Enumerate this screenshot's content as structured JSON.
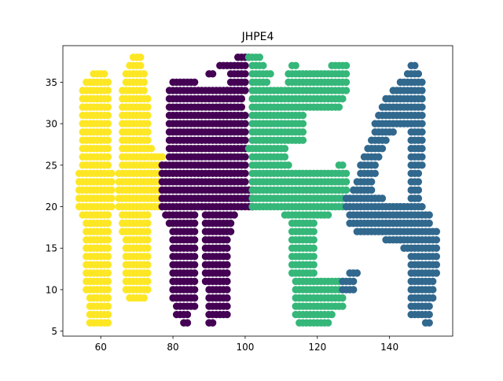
{
  "chart_data": {
    "type": "scatter",
    "title": "JHPE4",
    "xlabel": "",
    "ylabel": "",
    "xlim": [
      49.5,
      157.5
    ],
    "ylim": [
      4.4,
      39.4
    ],
    "x_ticks": [
      60,
      80,
      100,
      120,
      140
    ],
    "y_ticks": [
      5,
      10,
      15,
      20,
      25,
      30,
      35
    ],
    "grid": false,
    "legend": "none",
    "colors": {
      "yellow": "#fde725",
      "purple": "#440154",
      "green": "#35b779",
      "blue": "#31688e"
    },
    "groups": [
      {
        "color_key": "yellow",
        "spans": [
          [
            6,
            57,
            62
          ],
          [
            7,
            57,
            62
          ],
          [
            8,
            57,
            62
          ],
          [
            9,
            57,
            62
          ],
          [
            10,
            56,
            62
          ],
          [
            11,
            56,
            62
          ],
          [
            12,
            56,
            62
          ],
          [
            13,
            56,
            62
          ],
          [
            14,
            56,
            62
          ],
          [
            15,
            56,
            62
          ],
          [
            16,
            56,
            62
          ],
          [
            17,
            56,
            62
          ],
          [
            18,
            56,
            62
          ],
          [
            19,
            55,
            62
          ],
          [
            20,
            54,
            63
          ],
          [
            21,
            54,
            63
          ],
          [
            22,
            54,
            63
          ],
          [
            23,
            54,
            63
          ],
          [
            24,
            54,
            63
          ],
          [
            25,
            55,
            62
          ],
          [
            26,
            55,
            62
          ],
          [
            27,
            55,
            62
          ],
          [
            28,
            55,
            62
          ],
          [
            29,
            55,
            62
          ],
          [
            30,
            55,
            62
          ],
          [
            31,
            55,
            62
          ],
          [
            32,
            55,
            62
          ],
          [
            33,
            55,
            62
          ],
          [
            34,
            55,
            62
          ],
          [
            35,
            56,
            62
          ],
          [
            36,
            58,
            61
          ],
          [
            9,
            68,
            72
          ],
          [
            10,
            67,
            73
          ],
          [
            11,
            67,
            73
          ],
          [
            12,
            67,
            73
          ],
          [
            13,
            67,
            73
          ],
          [
            14,
            67,
            73
          ],
          [
            15,
            67,
            73
          ],
          [
            16,
            67,
            73
          ],
          [
            17,
            66,
            73
          ],
          [
            18,
            66,
            73
          ],
          [
            19,
            66,
            73
          ],
          [
            20,
            65,
            77
          ],
          [
            21,
            65,
            77
          ],
          [
            22,
            65,
            77
          ],
          [
            23,
            65,
            77
          ],
          [
            24,
            65,
            77
          ],
          [
            25,
            66,
            77
          ],
          [
            26,
            66,
            77
          ],
          [
            27,
            66,
            74
          ],
          [
            28,
            66,
            73
          ],
          [
            29,
            66,
            73
          ],
          [
            30,
            66,
            73
          ],
          [
            31,
            66,
            73
          ],
          [
            32,
            66,
            73
          ],
          [
            33,
            66,
            73
          ],
          [
            34,
            66,
            72
          ],
          [
            35,
            67,
            72
          ],
          [
            36,
            67,
            72
          ],
          [
            37,
            68,
            71
          ],
          [
            38,
            69,
            71
          ]
        ]
      },
      {
        "color_key": "purple",
        "spans": [
          [
            6,
            83,
            84
          ],
          [
            7,
            81,
            84
          ],
          [
            8,
            81,
            86
          ],
          [
            9,
            80,
            86
          ],
          [
            10,
            80,
            86
          ],
          [
            11,
            80,
            86
          ],
          [
            12,
            80,
            86
          ],
          [
            13,
            80,
            86
          ],
          [
            14,
            80,
            86
          ],
          [
            15,
            80,
            86
          ],
          [
            16,
            80,
            86
          ],
          [
            17,
            80,
            86
          ],
          [
            18,
            79,
            86
          ],
          [
            19,
            78,
            86
          ],
          [
            20,
            77,
            102
          ],
          [
            21,
            77,
            102
          ],
          [
            22,
            77,
            102
          ],
          [
            23,
            77,
            100
          ],
          [
            24,
            77,
            100
          ],
          [
            25,
            77,
            100
          ],
          [
            26,
            79,
            100
          ],
          [
            27,
            79,
            100
          ],
          [
            28,
            79,
            100
          ],
          [
            29,
            79,
            100
          ],
          [
            30,
            79,
            100
          ],
          [
            31,
            79,
            100
          ],
          [
            32,
            79,
            99
          ],
          [
            33,
            79,
            99
          ],
          [
            34,
            79,
            99
          ],
          [
            35,
            80,
            86
          ],
          [
            36,
            90,
            91
          ],
          [
            37,
            93,
            95
          ],
          [
            6,
            90,
            91
          ],
          [
            7,
            90,
            95
          ],
          [
            8,
            90,
            95
          ],
          [
            9,
            90,
            95
          ],
          [
            10,
            90,
            95
          ],
          [
            11,
            89,
            95
          ],
          [
            12,
            89,
            95
          ],
          [
            13,
            89,
            95
          ],
          [
            14,
            89,
            95
          ],
          [
            15,
            89,
            95
          ],
          [
            16,
            89,
            95
          ],
          [
            17,
            89,
            96
          ],
          [
            18,
            89,
            96
          ],
          [
            19,
            89,
            97
          ],
          [
            30,
            93,
            95
          ],
          [
            31,
            93,
            95
          ],
          [
            32,
            93,
            95
          ],
          [
            33,
            94,
            95
          ],
          [
            34,
            95,
            100
          ],
          [
            35,
            96,
            100
          ],
          [
            36,
            96,
            100
          ],
          [
            37,
            96,
            100
          ],
          [
            38,
            98,
            101
          ],
          [
            20,
            102,
            102
          ]
        ]
      },
      {
        "color_key": "green",
        "spans": [
          [
            6,
            115,
            123
          ],
          [
            7,
            114,
            124
          ],
          [
            8,
            114,
            127
          ],
          [
            9,
            114,
            127
          ],
          [
            10,
            114,
            127
          ],
          [
            11,
            114,
            126
          ],
          [
            11,
            126,
            127
          ],
          [
            12,
            113,
            119
          ],
          [
            13,
            113,
            119
          ],
          [
            14,
            113,
            119
          ],
          [
            15,
            113,
            119
          ],
          [
            16,
            113,
            119
          ],
          [
            17,
            113,
            119
          ],
          [
            18,
            113,
            119
          ],
          [
            19,
            111,
            123
          ],
          [
            20,
            102,
            128
          ],
          [
            21,
            102,
            128
          ],
          [
            22,
            102,
            128
          ],
          [
            23,
            102,
            128
          ],
          [
            24,
            102,
            128
          ],
          [
            25,
            102,
            112
          ],
          [
            25,
            126,
            127
          ],
          [
            26,
            102,
            111
          ],
          [
            27,
            101,
            111
          ],
          [
            28,
            102,
            116
          ],
          [
            29,
            102,
            116
          ],
          [
            30,
            102,
            116
          ],
          [
            31,
            102,
            116
          ],
          [
            32,
            102,
            126
          ],
          [
            33,
            102,
            127
          ],
          [
            34,
            102,
            128
          ],
          [
            35,
            102,
            106
          ],
          [
            35,
            112,
            128
          ],
          [
            36,
            102,
            107
          ],
          [
            36,
            112,
            128
          ],
          [
            37,
            102,
            105
          ],
          [
            37,
            113,
            114
          ],
          [
            37,
            124,
            128
          ],
          [
            38,
            101,
            104
          ]
        ]
      },
      {
        "color_key": "blue",
        "spans": [
          [
            6,
            150,
            151
          ],
          [
            7,
            146,
            151
          ],
          [
            8,
            146,
            151
          ],
          [
            9,
            146,
            152
          ],
          [
            10,
            146,
            152
          ],
          [
            11,
            146,
            152
          ],
          [
            12,
            146,
            153
          ],
          [
            13,
            146,
            153
          ],
          [
            14,
            146,
            153
          ],
          [
            15,
            144,
            153
          ],
          [
            16,
            139,
            153
          ],
          [
            17,
            131,
            153
          ],
          [
            18,
            129,
            151
          ],
          [
            19,
            129,
            151
          ],
          [
            20,
            128,
            149
          ],
          [
            21,
            128,
            138
          ],
          [
            21,
            146,
            148
          ],
          [
            22,
            130,
            135
          ],
          [
            22,
            146,
            148
          ],
          [
            23,
            131,
            135
          ],
          [
            23,
            146,
            148
          ],
          [
            24,
            132,
            136
          ],
          [
            24,
            146,
            148
          ],
          [
            25,
            132,
            136
          ],
          [
            25,
            146,
            149
          ],
          [
            26,
            133,
            137
          ],
          [
            26,
            146,
            149
          ],
          [
            27,
            134,
            138
          ],
          [
            27,
            146,
            149
          ],
          [
            28,
            135,
            139
          ],
          [
            28,
            146,
            149
          ],
          [
            29,
            136,
            141
          ],
          [
            29,
            146,
            149
          ],
          [
            30,
            136,
            149
          ],
          [
            31,
            137,
            149
          ],
          [
            32,
            138,
            149
          ],
          [
            33,
            139,
            149
          ],
          [
            34,
            141,
            149
          ],
          [
            35,
            143,
            149
          ],
          [
            36,
            145,
            148
          ],
          [
            37,
            146,
            147
          ],
          [
            10,
            127,
            130
          ],
          [
            11,
            127,
            130
          ],
          [
            12,
            129,
            131
          ]
        ]
      }
    ]
  }
}
